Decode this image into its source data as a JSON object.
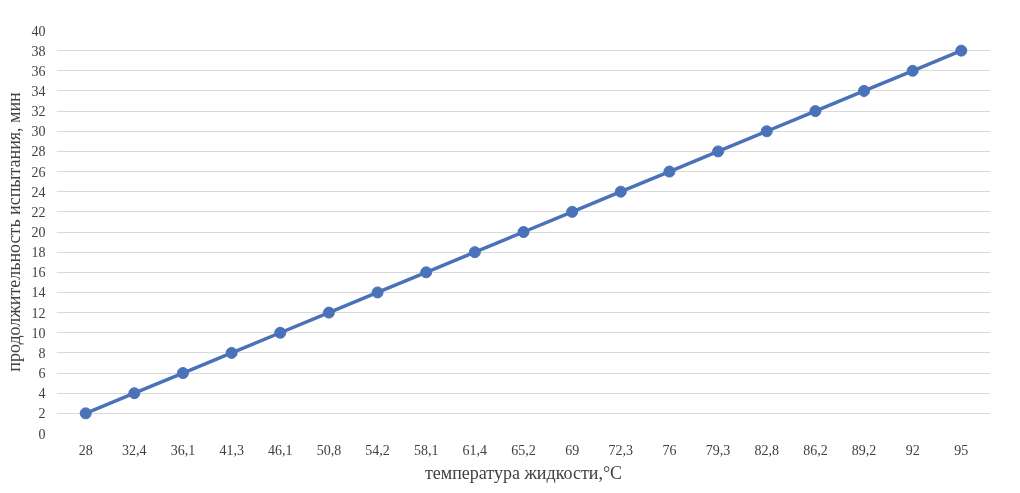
{
  "chart_data": {
    "type": "line",
    "xlabel": "температура жидкости,°С",
    "ylabel": "продолжительность испытания, мин",
    "categories": [
      "28",
      "32,4",
      "36,1",
      "41,3",
      "46,1",
      "50,8",
      "54,2",
      "58,1",
      "61,4",
      "65,2",
      "69",
      "72,3",
      "76",
      "79,3",
      "82,8",
      "86,2",
      "89,2",
      "92",
      "95"
    ],
    "series": [
      {
        "color": "#4a72b8",
        "values": [
          2,
          4,
          6,
          8,
          10,
          12,
          14,
          16,
          18,
          20,
          22,
          24,
          26,
          28,
          30,
          32,
          34,
          36,
          38
        ]
      }
    ],
    "ylim": [
      0,
      40
    ],
    "yticks": [
      0,
      2,
      4,
      6,
      8,
      10,
      12,
      14,
      16,
      18,
      20,
      22,
      24,
      26,
      28,
      30,
      32,
      34,
      36,
      38,
      40
    ],
    "grid": "y",
    "marker": "circle",
    "line_style": "solid"
  }
}
